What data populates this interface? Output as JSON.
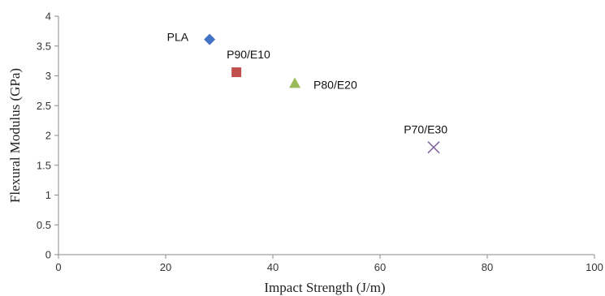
{
  "chart_data": {
    "type": "scatter",
    "title": "",
    "xlabel": "Impact Strength (J/m)",
    "ylabel": "Flexural Modulus (GPa)",
    "xlim": [
      0,
      100
    ],
    "ylim": [
      0,
      4
    ],
    "xticks": [
      0,
      20,
      40,
      60,
      80,
      100
    ],
    "yticks": [
      0,
      0.5,
      1,
      1.5,
      2,
      2.5,
      3,
      3.5,
      4
    ],
    "grid": false,
    "legend": "none",
    "points": [
      {
        "label": "PLA",
        "x": 28.2,
        "y": 3.61,
        "marker": "diamond",
        "color": "#4472C4"
      },
      {
        "label": "P90/E10",
        "x": 33.2,
        "y": 3.06,
        "marker": "square",
        "color": "#C0504D"
      },
      {
        "label": "P80/E20",
        "x": 44.1,
        "y": 2.88,
        "marker": "triangle",
        "color": "#9BBB59"
      },
      {
        "label": "P70/E30",
        "x": 70.0,
        "y": 1.8,
        "marker": "x",
        "color": "#8064A2"
      }
    ]
  }
}
